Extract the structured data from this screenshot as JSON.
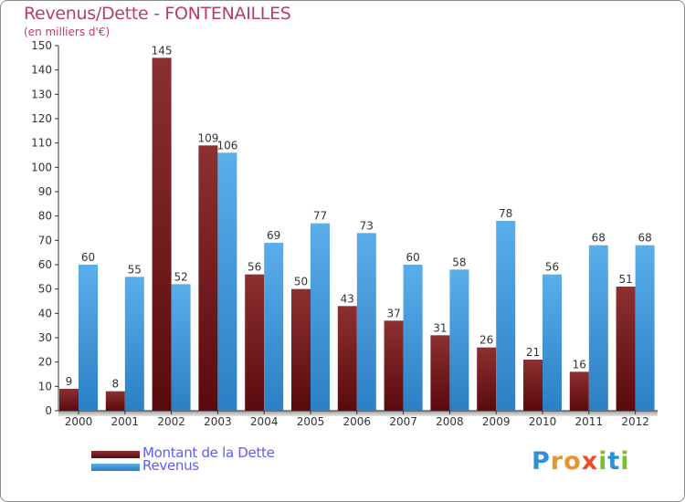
{
  "chart_data": {
    "type": "bar",
    "title": "Revenus/Dette - FONTENAILLES",
    "subtitle": "(en milliers d'€)",
    "xlabel": "",
    "ylabel": "",
    "ylim": [
      0,
      150
    ],
    "ytick_step": 10,
    "grid": false,
    "categories": [
      "2000",
      "2001",
      "2002",
      "2003",
      "2004",
      "2005",
      "2006",
      "2007",
      "2008",
      "2009",
      "2010",
      "2011",
      "2012"
    ],
    "series": [
      {
        "name": "Montant de la Dette",
        "color": "#6b1416",
        "values": [
          9,
          8,
          145,
          109,
          56,
          50,
          43,
          37,
          31,
          26,
          21,
          16,
          51
        ]
      },
      {
        "name": "Revenus",
        "color": "#3e9de0",
        "values": [
          60,
          55,
          52,
          106,
          69,
          77,
          73,
          60,
          58,
          78,
          56,
          68,
          68
        ]
      }
    ],
    "legend_position": "bottom-left"
  },
  "logo": {
    "letters": [
      "P",
      "r",
      "o",
      "x",
      "i",
      "t",
      "i"
    ],
    "colors": [
      "#2f8fd8",
      "#e8952a",
      "#e8952a",
      "#ef4b2a",
      "#7bbf2a",
      "#2f8fd8",
      "#7bbf2a"
    ]
  }
}
